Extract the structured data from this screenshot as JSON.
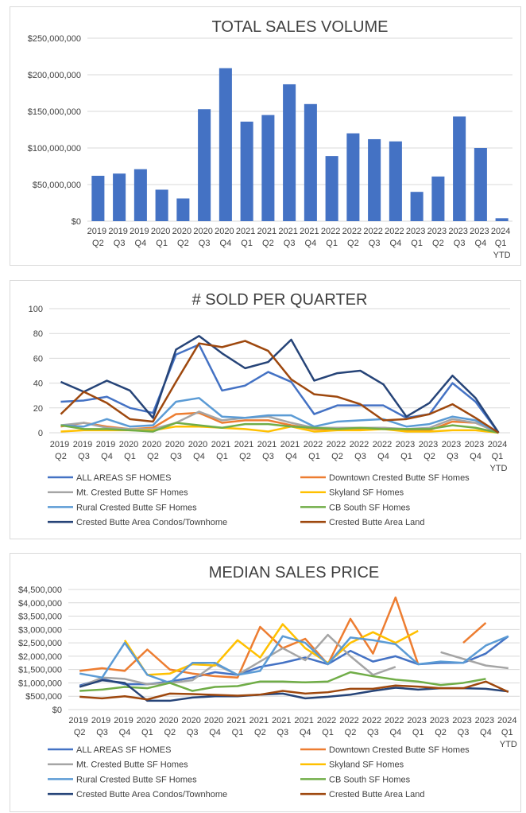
{
  "chart_data": [
    {
      "type": "bar",
      "title": "TOTAL SALES VOLUME",
      "categories": [
        "2019 Q2",
        "2019 Q3",
        "2019 Q4",
        "2020 Q1",
        "2020 Q2",
        "2020 Q3",
        "2020 Q4",
        "2021 Q1",
        "2021 Q2",
        "2021 Q3",
        "2021 Q4",
        "2022 Q1",
        "2022 Q2",
        "2022 Q3",
        "2022 Q4",
        "2023 Q1",
        "2023 Q2",
        "2023 Q3",
        "2023 Q4",
        "2024 Q1 YTD"
      ],
      "values": [
        62000000,
        65000000,
        71000000,
        43000000,
        31000000,
        153000000,
        209000000,
        136000000,
        145000000,
        187000000,
        160000000,
        89000000,
        120000000,
        112000000,
        109000000,
        40000000,
        61000000,
        143000000,
        100000000,
        4000000
      ],
      "color": "#4472c4",
      "ylim": [
        0,
        250000000
      ],
      "yticks": [
        {
          "value": 0,
          "label": "$0"
        },
        {
          "value": 50000000,
          "label": "$50,000,000"
        },
        {
          "value": 100000000,
          "label": "$100,000,000"
        },
        {
          "value": 150000000,
          "label": "$150,000,000"
        },
        {
          "value": 200000000,
          "label": "$200,000,000"
        },
        {
          "value": 250000000,
          "label": "$250,000,000"
        }
      ],
      "grid": true
    },
    {
      "type": "line",
      "title": "# SOLD PER QUARTER",
      "categories": [
        "2019 Q2",
        "2019 Q3",
        "2019 Q4",
        "2020 Q1",
        "2020 Q2",
        "2020 Q3",
        "2020 Q4",
        "2021 Q1",
        "2021 Q2",
        "2021 Q3",
        "2021 Q4",
        "2022 Q1",
        "2022 Q2",
        "2022 Q3",
        "2022 Q4",
        "2023 Q1",
        "2023 Q2",
        "2023 Q3",
        "2023 Q4",
        "2024 Q1 YTD"
      ],
      "series": [
        {
          "name": "ALL AREAS SF HOMES",
          "color": "#4472c4",
          "values": [
            25,
            26,
            29,
            20,
            16,
            63,
            71,
            34,
            38,
            49,
            41,
            15,
            22,
            22,
            22,
            12,
            15,
            40,
            25,
            0
          ]
        },
        {
          "name": "Downtown Crested Butte SF Homes",
          "color": "#ed7d31",
          "values": [
            5,
            8,
            5,
            3,
            4,
            15,
            16,
            8,
            10,
            10,
            6,
            3,
            3,
            3,
            4,
            2,
            2,
            9,
            8,
            0
          ]
        },
        {
          "name": "Mt. Crested Butte SF Homes",
          "color": "#a5a5a5",
          "values": [
            6,
            8,
            4,
            3,
            3,
            8,
            17,
            10,
            12,
            13,
            8,
            4,
            4,
            4,
            4,
            3,
            4,
            11,
            8,
            0
          ]
        },
        {
          "name": "Skyland SF Homes",
          "color": "#ffc000",
          "values": [
            1,
            2,
            2,
            2,
            2,
            5,
            5,
            4,
            3,
            1,
            5,
            1,
            2,
            2,
            3,
            1,
            1,
            2,
            2,
            0
          ]
        },
        {
          "name": "Rural Crested Butte SF Homes",
          "color": "#5b9bd5",
          "values": [
            6,
            5,
            11,
            5,
            6,
            25,
            28,
            13,
            12,
            14,
            14,
            5,
            9,
            10,
            11,
            5,
            7,
            13,
            10,
            0
          ]
        },
        {
          "name": "CB South SF Homes",
          "color": "#70ad47",
          "values": [
            6,
            3,
            3,
            2,
            1,
            8,
            6,
            4,
            7,
            7,
            5,
            4,
            3,
            4,
            3,
            3,
            3,
            6,
            4,
            0
          ]
        },
        {
          "name": "Crested Butte Area Condos/Townhome",
          "color": "#264478",
          "values": [
            41,
            33,
            42,
            34,
            12,
            67,
            78,
            64,
            52,
            57,
            75,
            42,
            48,
            50,
            39,
            13,
            24,
            46,
            28,
            0
          ]
        },
        {
          "name": "Crested Butte Area Land",
          "color": "#9e480e",
          "values": [
            15,
            33,
            24,
            11,
            9,
            41,
            72,
            69,
            74,
            66,
            43,
            31,
            29,
            23,
            10,
            11,
            15,
            23,
            12,
            0
          ]
        }
      ],
      "ylim": [
        0,
        100
      ],
      "yticks": [
        0,
        20,
        40,
        60,
        80,
        100
      ],
      "grid": true,
      "legend": "bottom"
    },
    {
      "type": "line",
      "title": "MEDIAN SALES PRICE",
      "categories": [
        "2019 Q2",
        "2019 Q3",
        "2019 Q4",
        "2020 Q1",
        "2020 Q2",
        "2020 Q3",
        "2020 Q4",
        "2021 Q1",
        "2021 Q2",
        "2021 Q3",
        "2021 Q4",
        "2022 Q1",
        "2022 Q2",
        "2022 Q3",
        "2022 Q4",
        "2023 Q1",
        "2023 Q2",
        "2023 Q3",
        "2023 Q4",
        "2024 Q1 YTD"
      ],
      "series": [
        {
          "name": "ALL AREAS SF HOMES",
          "color": "#4472c4",
          "values": [
            900000,
            1150000,
            950000,
            950000,
            1050000,
            1200000,
            1400000,
            1300000,
            1600000,
            1750000,
            1950000,
            1700000,
            2200000,
            1800000,
            2000000,
            1700000,
            1750000,
            1750000,
            2100000,
            2750000
          ]
        },
        {
          "name": "Downtown Crested Butte SF Homes",
          "color": "#ed7d31",
          "values": [
            1450000,
            1550000,
            1450000,
            2250000,
            1500000,
            1350000,
            1250000,
            1200000,
            3100000,
            2300000,
            2650000,
            1700000,
            3400000,
            2100000,
            4200000,
            1700000,
            null,
            2500000,
            3250000,
            null
          ]
        },
        {
          "name": "Mt. Crested Butte SF Homes",
          "color": "#a5a5a5",
          "values": [
            850000,
            1200000,
            1150000,
            950000,
            1000000,
            1100000,
            1700000,
            1300000,
            1800000,
            2300000,
            1850000,
            2800000,
            2000000,
            1300000,
            1600000,
            null,
            2150000,
            1900000,
            1650000,
            1550000
          ]
        },
        {
          "name": "Skyland SF Homes",
          "color": "#ffc000",
          "values": [
            null,
            null,
            2600000,
            1300000,
            1350000,
            1700000,
            1650000,
            2600000,
            1950000,
            3200000,
            2300000,
            1750000,
            2500000,
            2900000,
            2500000,
            2950000,
            null,
            null,
            null,
            null
          ]
        },
        {
          "name": "Rural Crested Butte SF Homes",
          "color": "#5b9bd5",
          "values": [
            1350000,
            1200000,
            2500000,
            1300000,
            1000000,
            1750000,
            1750000,
            1300000,
            1450000,
            2750000,
            2500000,
            1700000,
            2700000,
            2600000,
            2450000,
            1700000,
            1800000,
            1750000,
            2400000,
            2750000
          ]
        },
        {
          "name": "CB South SF Homes",
          "color": "#70ad47",
          "values": [
            700000,
            750000,
            850000,
            800000,
            1000000,
            700000,
            850000,
            880000,
            1050000,
            1050000,
            1020000,
            1050000,
            1400000,
            1250000,
            1120000,
            1050000,
            920000,
            1000000,
            1150000,
            null
          ]
        },
        {
          "name": "Crested Butte Area Condos/Townhome",
          "color": "#264478",
          "values": [
            850000,
            1100000,
            1000000,
            330000,
            330000,
            450000,
            500000,
            500000,
            560000,
            600000,
            420000,
            480000,
            560000,
            700000,
            820000,
            750000,
            800000,
            800000,
            780000,
            680000
          ]
        },
        {
          "name": "Crested Butte Area Land",
          "color": "#9e480e",
          "values": [
            480000,
            420000,
            500000,
            380000,
            600000,
            580000,
            550000,
            520000,
            560000,
            700000,
            600000,
            650000,
            780000,
            780000,
            900000,
            860000,
            800000,
            800000,
            1050000,
            660000
          ]
        }
      ],
      "ylim": [
        0,
        4500000
      ],
      "yticks": [
        {
          "value": 0,
          "label": "$0"
        },
        {
          "value": 500000,
          "label": "$500,000"
        },
        {
          "value": 1000000,
          "label": "$1,000,000"
        },
        {
          "value": 1500000,
          "label": "$1,500,000"
        },
        {
          "value": 2000000,
          "label": "$2,000,000"
        },
        {
          "value": 2500000,
          "label": "$2,500,000"
        },
        {
          "value": 3000000,
          "label": "$3,000,000"
        },
        {
          "value": 3500000,
          "label": "$3,500,000"
        },
        {
          "value": 4000000,
          "label": "$4,000,000"
        },
        {
          "value": 4500000,
          "label": "$4,500,000"
        }
      ],
      "grid": true,
      "legend": "bottom"
    }
  ]
}
